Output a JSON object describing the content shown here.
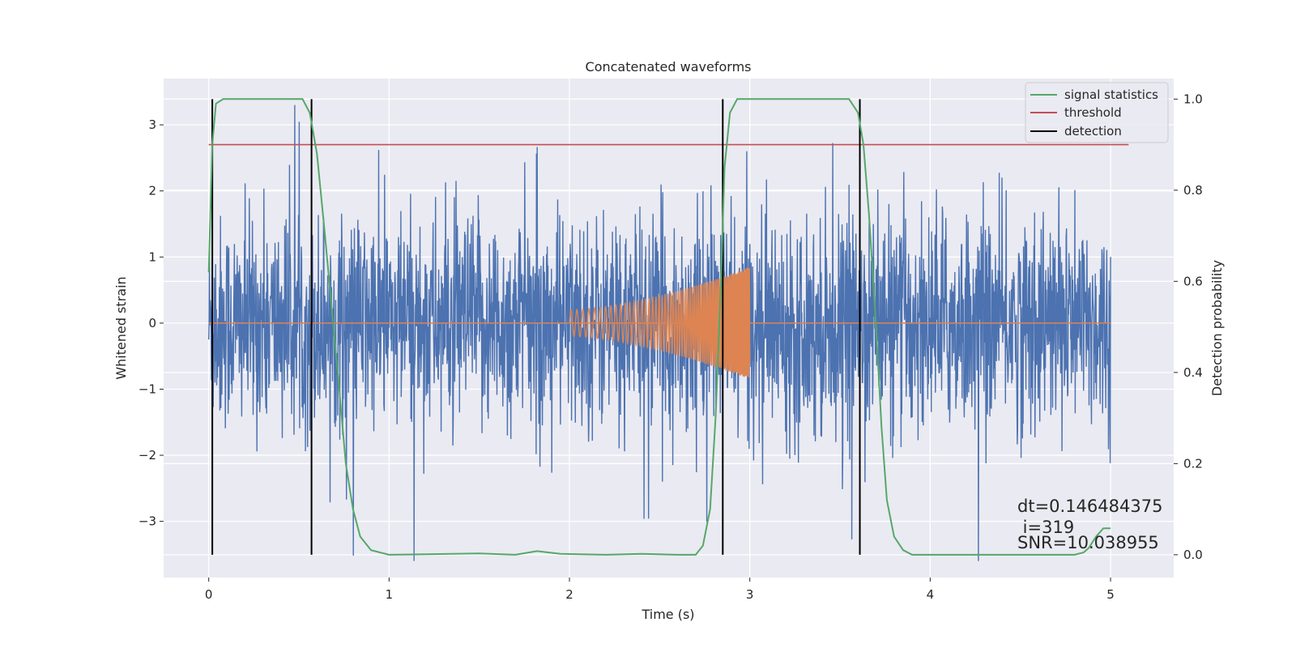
{
  "chart_data": {
    "type": "line",
    "title": "Concatenated waveforms",
    "xlabel": "Time (s)",
    "ylabel_left": "Whitened strain",
    "ylabel_right": "Detection probability",
    "xlim": [
      -0.25,
      5.35
    ],
    "ylim_left": [
      -3.85,
      3.7
    ],
    "ylim_right": [
      -0.05,
      1.045
    ],
    "x_ticks": [
      0,
      1,
      2,
      3,
      4,
      5
    ],
    "y_ticks_left": [
      -3,
      -2,
      -1,
      0,
      1,
      2,
      3
    ],
    "y_ticks_right": [
      0.0,
      0.2,
      0.4,
      0.6,
      0.8,
      1.0
    ],
    "y_tick_labels_right": [
      "0.0",
      "0.2",
      "0.4",
      "0.6",
      "0.8",
      "1.0"
    ],
    "grid": true,
    "legend_position": "top-right",
    "colors": {
      "background": "#eaeaf2",
      "noise": "#4c72b0",
      "injection": "#dd8452",
      "signal_statistics": "#55a868",
      "threshold": "#c44e52",
      "detection": "#000000"
    },
    "series": [
      {
        "name": "",
        "axis": "left",
        "description_kind": "noise",
        "x_range": [
          0,
          5
        ],
        "typical_amplitude": 0.8,
        "max": 3.3,
        "min": -3.6
      },
      {
        "name": "",
        "axis": "left",
        "description_kind": "chirp",
        "x_start": 2.0,
        "x_end": 3.0,
        "amplitude_start": 0.2,
        "amplitude_end": 0.85,
        "freq_start_hz": 30,
        "freq_end_hz": 160
      },
      {
        "name": "signal statistics",
        "axis": "right",
        "points": [
          [
            0.0,
            0.62
          ],
          [
            0.02,
            0.9
          ],
          [
            0.04,
            0.99
          ],
          [
            0.08,
            1.0
          ],
          [
            0.52,
            1.0
          ],
          [
            0.56,
            0.97
          ],
          [
            0.6,
            0.88
          ],
          [
            0.64,
            0.72
          ],
          [
            0.68,
            0.55
          ],
          [
            0.72,
            0.38
          ],
          [
            0.76,
            0.2
          ],
          [
            0.8,
            0.1
          ],
          [
            0.84,
            0.04
          ],
          [
            0.9,
            0.01
          ],
          [
            1.0,
            0.0
          ],
          [
            1.5,
            0.003
          ],
          [
            1.7,
            0.0
          ],
          [
            1.82,
            0.008
          ],
          [
            1.95,
            0.002
          ],
          [
            2.2,
            0.0
          ],
          [
            2.4,
            0.002
          ],
          [
            2.6,
            0.0
          ],
          [
            2.7,
            0.0
          ],
          [
            2.74,
            0.02
          ],
          [
            2.78,
            0.1
          ],
          [
            2.81,
            0.3
          ],
          [
            2.84,
            0.6
          ],
          [
            2.86,
            0.85
          ],
          [
            2.89,
            0.97
          ],
          [
            2.93,
            1.0
          ],
          [
            3.55,
            1.0
          ],
          [
            3.6,
            0.97
          ],
          [
            3.63,
            0.9
          ],
          [
            3.66,
            0.75
          ],
          [
            3.7,
            0.5
          ],
          [
            3.73,
            0.28
          ],
          [
            3.76,
            0.12
          ],
          [
            3.8,
            0.04
          ],
          [
            3.85,
            0.01
          ],
          [
            3.9,
            0.0
          ],
          [
            4.8,
            0.0
          ],
          [
            4.85,
            0.005
          ],
          [
            4.88,
            0.015
          ],
          [
            4.92,
            0.04
          ],
          [
            4.96,
            0.058
          ],
          [
            5.0,
            0.058
          ]
        ]
      },
      {
        "name": "threshold",
        "axis": "right",
        "x": [
          0.0,
          5.1
        ],
        "value": 0.9
      },
      {
        "name": "detection",
        "axis": "right",
        "x_positions": [
          0.02,
          0.57,
          2.85,
          3.61
        ],
        "y_range": [
          0.0,
          1.0
        ]
      }
    ],
    "legend": [
      "signal statistics",
      "threshold",
      "detection"
    ],
    "annotations": [
      "dt=0.146484375",
      " i=319",
      "SNR=10.038955"
    ]
  }
}
